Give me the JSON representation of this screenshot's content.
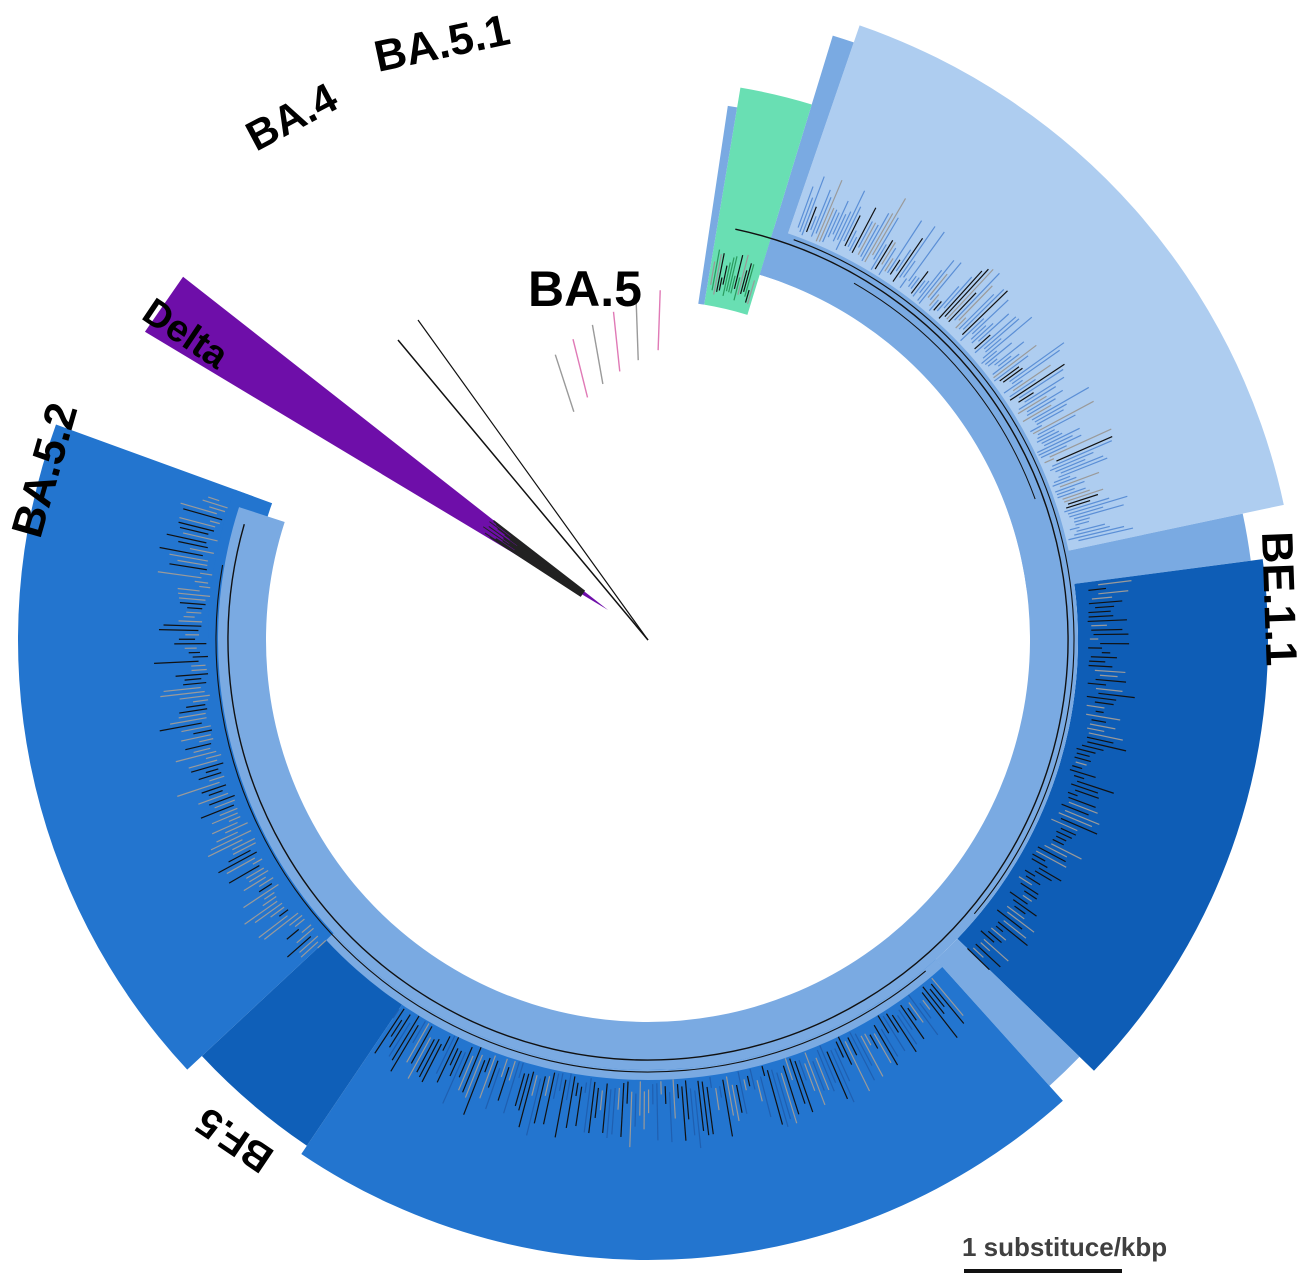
{
  "figure": {
    "type": "circular-phylogenetic-tree",
    "colors": {
      "ba5_light": "#aecdf0",
      "ba5_mid": "#7aaae2",
      "ba5_2": "#2375cf",
      "be_1_1": "#0e5db6",
      "bf_5": "#0f5fb8",
      "ba4": "#69dfb3",
      "delta": "#6e0ea9",
      "label_blue": "#3a74b8",
      "label_ba4": "#5a9e7e",
      "label_delta": "#e6c8f0",
      "branch_black": "#111111",
      "branch_gray": "#9a9a9a",
      "branch_pink": "#e07ab6"
    },
    "clades": {
      "ba5_1": "BA.5.1",
      "ba4": "BA.4",
      "delta": "Delta",
      "ba5": "BA.5",
      "ba5_2": "BA.5.2",
      "be_1_1": "BE.1.1",
      "bf_5": "BF.5"
    },
    "scale_bar": "1 substituce/kbp"
  }
}
